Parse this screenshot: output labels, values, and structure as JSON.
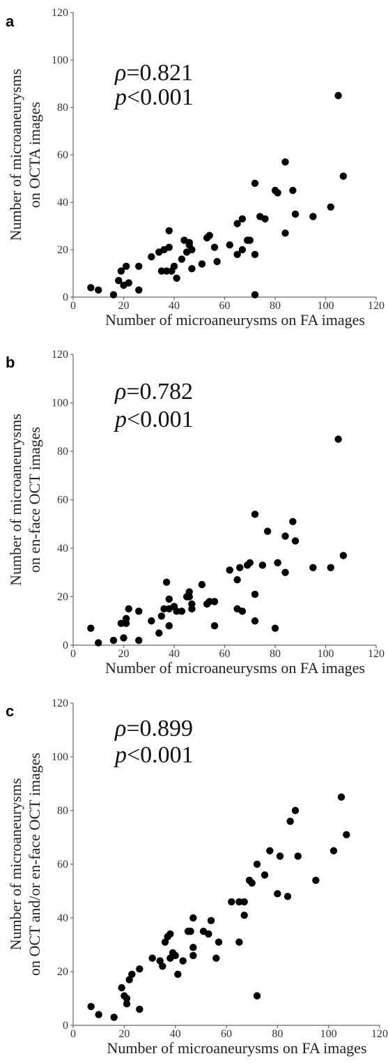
{
  "chart_data": [
    {
      "type": "scatter",
      "panel_label": "a",
      "stat_rho_symbol": "ρ",
      "stat_rho_value": "=0.821",
      "stat_p_symbol": "p",
      "stat_p_value": "<0.001",
      "xlabel": "Number of microaneurysms on FA images",
      "ylabel_line1": "Number of microaneurysms",
      "ylabel_line2": "on OCTA images",
      "xlim": [
        0,
        120
      ],
      "ylim": [
        0,
        120
      ],
      "xticks": [
        "0",
        "20",
        "40",
        "60",
        "80",
        "100",
        "120"
      ],
      "yticks": [
        "0",
        "20",
        "40",
        "60",
        "80",
        "100",
        "120"
      ],
      "grid": false,
      "points": [
        [
          7,
          4
        ],
        [
          10,
          3
        ],
        [
          16,
          1
        ],
        [
          18,
          7
        ],
        [
          19,
          11
        ],
        [
          20,
          5
        ],
        [
          21,
          13
        ],
        [
          22,
          6
        ],
        [
          26,
          13
        ],
        [
          26,
          3
        ],
        [
          31,
          17
        ],
        [
          34,
          19
        ],
        [
          35,
          11
        ],
        [
          36,
          20
        ],
        [
          37,
          11
        ],
        [
          38,
          21
        ],
        [
          38,
          28
        ],
        [
          39,
          11
        ],
        [
          40,
          13
        ],
        [
          41,
          8
        ],
        [
          43,
          16
        ],
        [
          44,
          24
        ],
        [
          45,
          19
        ],
        [
          46,
          23
        ],
        [
          46,
          22
        ],
        [
          47,
          12
        ],
        [
          47,
          20
        ],
        [
          51,
          14
        ],
        [
          53,
          25
        ],
        [
          54,
          26
        ],
        [
          56,
          21
        ],
        [
          57,
          15
        ],
        [
          62,
          22
        ],
        [
          65,
          18
        ],
        [
          65,
          31
        ],
        [
          67,
          20
        ],
        [
          67,
          33
        ],
        [
          69,
          24
        ],
        [
          70,
          24
        ],
        [
          72,
          18
        ],
        [
          72,
          1
        ],
        [
          72,
          48
        ],
        [
          74,
          34
        ],
        [
          76,
          33
        ],
        [
          80,
          45
        ],
        [
          81,
          44
        ],
        [
          84,
          57
        ],
        [
          84,
          27
        ],
        [
          87,
          45
        ],
        [
          88,
          35
        ],
        [
          95,
          34
        ],
        [
          102,
          38
        ],
        [
          105,
          85
        ],
        [
          107,
          51
        ]
      ]
    },
    {
      "type": "scatter",
      "panel_label": "b",
      "stat_rho_symbol": "ρ",
      "stat_rho_value": "=0.782",
      "stat_p_symbol": "p",
      "stat_p_value": "<0.001",
      "xlabel": "Number of microaneurysms on FA images",
      "ylabel_line1": "Number of microaneurysms",
      "ylabel_line2": "on en-face OCT images",
      "xlim": [
        0,
        120
      ],
      "ylim": [
        0,
        120
      ],
      "xticks": [
        "0",
        "20",
        "40",
        "60",
        "80",
        "100",
        "120"
      ],
      "yticks": [
        "0",
        "20",
        "40",
        "60",
        "80",
        "100",
        "120"
      ],
      "grid": false,
      "points": [
        [
          7,
          7
        ],
        [
          10,
          1
        ],
        [
          16,
          2
        ],
        [
          19,
          9
        ],
        [
          20,
          3
        ],
        [
          21,
          9
        ],
        [
          21,
          11
        ],
        [
          22,
          15
        ],
        [
          26,
          14
        ],
        [
          26,
          2
        ],
        [
          31,
          10
        ],
        [
          34,
          5
        ],
        [
          35,
          12
        ],
        [
          36,
          15
        ],
        [
          37,
          26
        ],
        [
          38,
          8
        ],
        [
          38,
          15
        ],
        [
          38,
          19
        ],
        [
          40,
          16
        ],
        [
          41,
          14
        ],
        [
          43,
          14
        ],
        [
          45,
          20
        ],
        [
          46,
          22
        ],
        [
          46,
          20
        ],
        [
          47,
          15
        ],
        [
          47,
          17
        ],
        [
          51,
          25
        ],
        [
          53,
          17
        ],
        [
          54,
          18
        ],
        [
          56,
          8
        ],
        [
          56,
          18
        ],
        [
          62,
          31
        ],
        [
          65,
          27
        ],
        [
          65,
          15
        ],
        [
          66,
          32
        ],
        [
          67,
          14
        ],
        [
          69,
          33
        ],
        [
          70,
          34
        ],
        [
          72,
          54
        ],
        [
          72,
          21
        ],
        [
          72,
          10
        ],
        [
          75,
          33
        ],
        [
          77,
          47
        ],
        [
          80,
          7
        ],
        [
          81,
          34
        ],
        [
          84,
          45
        ],
        [
          84,
          30
        ],
        [
          87,
          51
        ],
        [
          88,
          43
        ],
        [
          95,
          32
        ],
        [
          102,
          32
        ],
        [
          105,
          85
        ],
        [
          107,
          37
        ]
      ]
    },
    {
      "type": "scatter",
      "panel_label": "c",
      "stat_rho_symbol": "ρ",
      "stat_rho_value": "=0.899",
      "stat_p_symbol": "p",
      "stat_p_value": "<0.001",
      "xlabel": "Number of microaneurysms on FA images",
      "ylabel_line1": "Number of microaneurysms",
      "ylabel_line2": "on OCT and/or en-face OCT images",
      "xlim": [
        0,
        120
      ],
      "ylim": [
        0,
        120
      ],
      "xticks": [
        "0",
        "20",
        "40",
        "60",
        "80",
        "100",
        "120"
      ],
      "yticks": [
        "0",
        "20",
        "40",
        "60",
        "80",
        "100",
        "120"
      ],
      "grid": false,
      "points": [
        [
          7,
          7
        ],
        [
          10,
          4
        ],
        [
          16,
          3
        ],
        [
          19,
          14
        ],
        [
          20,
          11
        ],
        [
          21,
          8
        ],
        [
          21,
          10
        ],
        [
          22,
          17
        ],
        [
          23,
          19
        ],
        [
          26,
          21
        ],
        [
          26,
          6
        ],
        [
          31,
          25
        ],
        [
          34,
          24
        ],
        [
          35,
          22
        ],
        [
          36,
          31
        ],
        [
          37,
          33
        ],
        [
          38,
          34
        ],
        [
          38,
          25
        ],
        [
          39,
          27
        ],
        [
          40,
          26
        ],
        [
          41,
          19
        ],
        [
          43,
          24
        ],
        [
          45,
          35
        ],
        [
          46,
          35
        ],
        [
          47,
          40
        ],
        [
          47,
          29
        ],
        [
          47,
          26
        ],
        [
          51,
          35
        ],
        [
          53,
          34
        ],
        [
          54,
          39
        ],
        [
          56,
          25
        ],
        [
          57,
          31
        ],
        [
          62,
          46
        ],
        [
          65,
          31
        ],
        [
          65,
          46
        ],
        [
          67,
          41
        ],
        [
          67,
          46
        ],
        [
          69,
          54
        ],
        [
          70,
          53
        ],
        [
          72,
          60
        ],
        [
          72,
          11
        ],
        [
          75,
          56
        ],
        [
          77,
          65
        ],
        [
          80,
          49
        ],
        [
          81,
          63
        ],
        [
          84,
          48
        ],
        [
          85,
          76
        ],
        [
          87,
          80
        ],
        [
          88,
          63
        ],
        [
          95,
          54
        ],
        [
          102,
          65
        ],
        [
          105,
          85
        ],
        [
          107,
          71
        ]
      ]
    }
  ]
}
